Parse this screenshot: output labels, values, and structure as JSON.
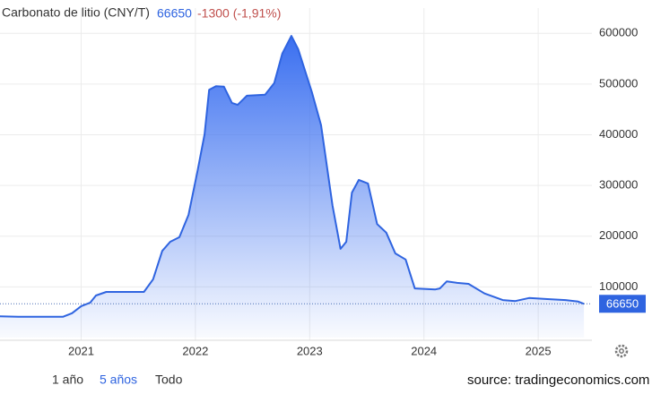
{
  "chart_data": {
    "type": "area",
    "title": "Carbonato de litio (CNY/T)",
    "current_value": 66650,
    "change": "-1300 (-1,91%)",
    "color": "#2f64e0",
    "grid": true,
    "x": [
      2020.29,
      2020.45,
      2020.84,
      2020.92,
      2021.0,
      2021.08,
      2021.13,
      2021.22,
      2021.55,
      2021.63,
      2021.71,
      2021.78,
      2021.86,
      2021.94,
      2022.02,
      2022.08,
      2022.12,
      2022.18,
      2022.25,
      2022.32,
      2022.37,
      2022.45,
      2022.61,
      2022.69,
      2022.76,
      2022.84,
      2022.9,
      2023.02,
      2023.1,
      2023.2,
      2023.27,
      2023.32,
      2023.37,
      2023.43,
      2023.51,
      2023.59,
      2023.67,
      2023.75,
      2023.84,
      2023.92,
      2024.1,
      2024.14,
      2024.2,
      2024.29,
      2024.39,
      2024.53,
      2024.69,
      2024.8,
      2024.92,
      2025.08,
      2025.24,
      2025.35,
      2025.4
    ],
    "values": [
      42000,
      41000,
      41000,
      48000,
      62000,
      69000,
      83000,
      90000,
      90000,
      115000,
      171000,
      189000,
      198000,
      242000,
      330000,
      401000,
      489000,
      496000,
      495000,
      463000,
      459000,
      477000,
      479000,
      502000,
      560000,
      595000,
      569000,
      484000,
      419000,
      260000,
      175000,
      189000,
      286000,
      311000,
      304000,
      224000,
      207000,
      166000,
      154000,
      97000,
      95000,
      97000,
      111000,
      108000,
      106000,
      87000,
      74000,
      72000,
      78000,
      76000,
      74000,
      71000,
      66650
    ],
    "xlim": [
      2020.29,
      2025.47
    ],
    "ylim": [
      0,
      650000
    ],
    "xticks": [
      2021,
      2022,
      2023,
      2024,
      2025
    ],
    "yticks": [
      100000,
      200000,
      300000,
      400000,
      500000,
      600000
    ]
  },
  "controls": {
    "ranges": [
      "1 año",
      "5 años",
      "Todo"
    ],
    "selected": 1,
    "source": "source: tradingeconomics.com"
  }
}
